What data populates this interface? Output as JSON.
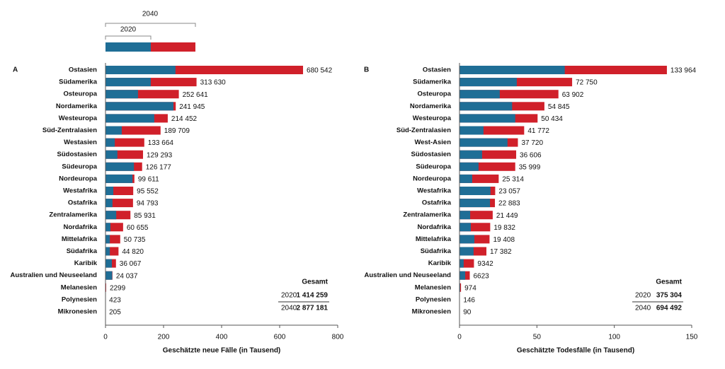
{
  "chart_data": [
    {
      "type": "bar",
      "panel": "A",
      "orientation": "horizontal",
      "categories": [
        "Ostasien",
        "Südamerika",
        "Osteuropa",
        "Nordamerika",
        "Westeuropa",
        "Süd-Zentralasien",
        "Westasien",
        "Südostasien",
        "Südeuropa",
        "Nordeuropa",
        "Westafrika",
        "Ostafrika",
        "Zentralamerika",
        "Nordafrika",
        "Mittelafrika",
        "Südafrika",
        "Karibik",
        "Australien und Neuseeland",
        "Melanesien",
        "Polynesien",
        "Mikronesien"
      ],
      "series": [
        {
          "name": "2020",
          "color": "#1f6e96",
          "values": [
            241,
            156,
            112,
            234,
            168,
            56,
            32,
            41,
            98,
            93,
            27,
            24,
            37,
            17,
            15,
            15,
            22,
            23,
            0.8,
            0.3,
            0.15
          ]
        },
        {
          "name": "2040",
          "color": "#d0202a",
          "values": [
            680.542,
            313.63,
            252.641,
            241.945,
            214.452,
            189.709,
            133.664,
            129.293,
            126.177,
            99.611,
            95.552,
            94.793,
            85.931,
            60.655,
            50.735,
            44.82,
            36.067,
            24.037,
            2.299,
            0.423,
            0.205
          ],
          "value_labels": [
            "680 542",
            "313 630",
            "252 641",
            "241 945",
            "214 452",
            "189 709",
            "133 664",
            "129 293",
            "126 177",
            "99 611",
            "95 552",
            "94 793",
            "85 931",
            "60 655",
            "50 735",
            "44 820",
            "36 067",
            "24 037",
            "2299",
            "423",
            "205"
          ]
        }
      ],
      "xlim": [
        0,
        800
      ],
      "xticks": [
        0,
        200,
        400,
        600,
        800
      ],
      "x_label": "Geschätzte neue Fälle (in Tausend)",
      "totals": {
        "header": "Gesamt",
        "rows": [
          {
            "year": "2020",
            "value": "1 414 259"
          },
          {
            "year": "2040",
            "value": "2 877 181"
          }
        ]
      }
    },
    {
      "type": "bar",
      "panel": "B",
      "orientation": "horizontal",
      "categories": [
        "Ostasien",
        "Südamerika",
        "Osteuropa",
        "Nordamerika",
        "Westeuropa",
        "Süd-Zentralasien",
        "West-Asien",
        "Südostasien",
        "Südeuropa",
        "Nordeuropa",
        "Westafrika",
        "Ostafrika",
        "Zentralamerika",
        "Nordafrika",
        "Mittelafrika",
        "Südafrika",
        "Karibik",
        "Australien und Neuseeland",
        "Melanesien",
        "Polynesien",
        "Mikronesien"
      ],
      "series": [
        {
          "name": "2020",
          "color": "#1f6e96",
          "values": [
            68,
            37,
            26,
            34,
            36,
            15.5,
            31,
            14.6,
            12.3,
            8.2,
            20,
            19.7,
            6.9,
            7.3,
            9.6,
            9.1,
            2.7,
            3.7,
            0.4,
            0.06,
            0.04
          ]
        },
        {
          "name": "2040",
          "color": "#d0202a",
          "values": [
            133.964,
            72.75,
            63.902,
            54.845,
            50.434,
            41.772,
            37.72,
            36.606,
            35.999,
            25.314,
            23.057,
            22.883,
            21.449,
            19.832,
            19.408,
            17.382,
            9.342,
            6.623,
            0.974,
            0.146,
            0.09
          ],
          "value_labels": [
            "133 964",
            "72 750",
            "63 902",
            "54 845",
            "50 434",
            "41 772",
            "37 720",
            "36 606",
            "35 999",
            "25 314",
            "23 057",
            "22 883",
            "21 449",
            "19 832",
            "19 408",
            "17 382",
            "9342",
            "6623",
            "974",
            "146",
            "90"
          ]
        }
      ],
      "xlim": [
        0,
        150
      ],
      "xticks": [
        0,
        50,
        100,
        150
      ],
      "x_label": "Geschätzte Todesfälle (in Tausend)",
      "totals": {
        "header": "Gesamt",
        "rows": [
          {
            "year": "2020",
            "value": "375 304"
          },
          {
            "year": "2040",
            "value": "694 492"
          }
        ]
      }
    }
  ]
}
